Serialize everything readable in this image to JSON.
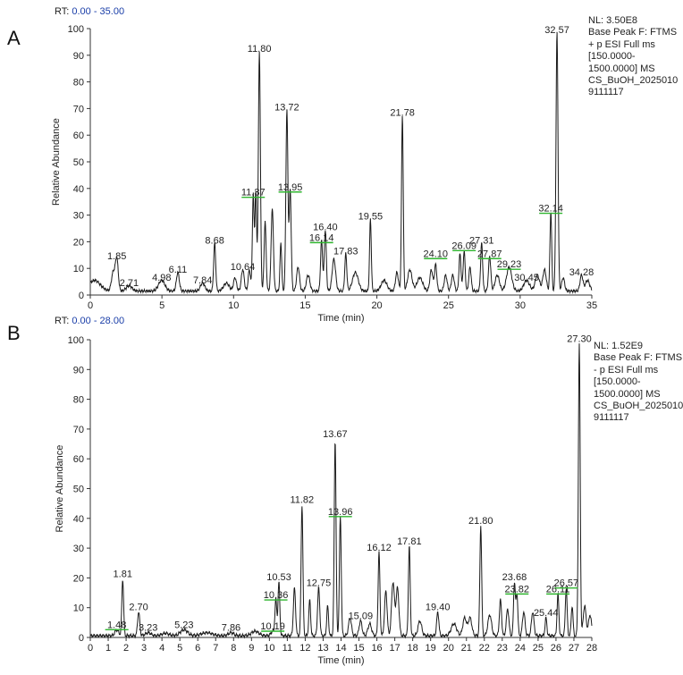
{
  "panels": {
    "A": {
      "label": "A",
      "rt_prefix": "RT:",
      "rt_range": "0.00 - 35.00",
      "meta": [
        "NL: 3.50E8",
        "Base Peak F: FTMS",
        "+ p ESI Full ms",
        "[150.0000-",
        "1500.0000] MS",
        "CS_BuOH_2025010",
        "9111117"
      ]
    },
    "B": {
      "label": "B",
      "rt_prefix": "RT:",
      "rt_range": "0.00 - 28.00",
      "meta": [
        "NL: 1.52E9",
        "Base Peak F: FTMS",
        "- p ESI Full ms",
        "[150.0000-",
        "1500.0000] MS",
        "CS_BuOH_2025010",
        "9111117"
      ]
    }
  },
  "chart_data": [
    {
      "type": "line",
      "title": "",
      "xlabel": "Time (min)",
      "ylabel": "Relative Abundance",
      "xlim": [
        0,
        35
      ],
      "ylim": [
        0,
        100
      ],
      "xticks": [
        0,
        5,
        10,
        15,
        20,
        25,
        30,
        35
      ],
      "yticks": [
        0,
        10,
        20,
        30,
        40,
        50,
        60,
        70,
        80,
        90,
        100
      ],
      "baseline": 1.5,
      "peaks": [
        [
          0.3,
          4,
          0.4
        ],
        [
          1.6,
          7,
          0.12
        ],
        [
          1.85,
          12,
          0.1
        ],
        [
          2.71,
          2,
          0.2
        ],
        [
          4.98,
          4,
          0.22
        ],
        [
          6.11,
          7,
          0.1
        ],
        [
          7.84,
          3,
          0.15
        ],
        [
          8.68,
          18,
          0.07
        ],
        [
          9.5,
          3,
          0.2
        ],
        [
          10.1,
          5,
          0.1
        ],
        [
          10.64,
          8,
          0.1
        ],
        [
          11.1,
          8,
          0.08
        ],
        [
          11.37,
          36,
          0.06
        ],
        [
          11.55,
          37,
          0.06
        ],
        [
          11.8,
          90,
          0.07
        ],
        [
          12.2,
          26,
          0.07
        ],
        [
          12.7,
          31,
          0.08
        ],
        [
          13.3,
          18,
          0.06
        ],
        [
          13.72,
          68,
          0.07
        ],
        [
          13.95,
          38,
          0.07
        ],
        [
          14.5,
          9,
          0.1
        ],
        [
          15.2,
          6,
          0.12
        ],
        [
          16.14,
          19,
          0.07
        ],
        [
          16.4,
          23,
          0.07
        ],
        [
          17.0,
          12,
          0.12
        ],
        [
          17.83,
          14,
          0.07
        ],
        [
          18.5,
          7,
          0.2
        ],
        [
          19.55,
          27,
          0.06
        ],
        [
          20.5,
          4,
          0.2
        ],
        [
          21.4,
          7,
          0.1
        ],
        [
          21.78,
          66,
          0.06
        ],
        [
          22.3,
          8,
          0.15
        ],
        [
          23.0,
          5,
          0.2
        ],
        [
          23.8,
          8,
          0.1
        ],
        [
          24.1,
          10,
          0.08
        ],
        [
          24.8,
          6,
          0.1
        ],
        [
          25.3,
          6,
          0.1
        ],
        [
          25.8,
          14,
          0.07
        ],
        [
          26.09,
          15,
          0.07
        ],
        [
          26.5,
          9,
          0.08
        ],
        [
          27.31,
          18,
          0.07
        ],
        [
          27.87,
          13,
          0.08
        ],
        [
          28.4,
          6,
          0.15
        ],
        [
          29.23,
          9,
          0.18
        ],
        [
          30.45,
          4,
          0.2
        ],
        [
          31.2,
          6,
          0.15
        ],
        [
          31.7,
          8,
          0.12
        ],
        [
          32.14,
          30,
          0.06
        ],
        [
          32.57,
          97,
          0.07
        ],
        [
          33.0,
          5,
          0.1
        ],
        [
          34.28,
          6,
          0.1
        ],
        [
          34.7,
          4,
          0.15
        ]
      ],
      "labels": [
        {
          "x": 1.85,
          "y": 12,
          "text": "1.85"
        },
        {
          "x": 2.71,
          "y": 2,
          "text": "2.71"
        },
        {
          "x": 4.98,
          "y": 4,
          "text": "4.98"
        },
        {
          "x": 6.11,
          "y": 7,
          "text": "6.11"
        },
        {
          "x": 7.84,
          "y": 3,
          "text": "7.84"
        },
        {
          "x": 8.68,
          "y": 18,
          "text": "8.68"
        },
        {
          "x": 10.64,
          "y": 8,
          "text": "10.64"
        },
        {
          "x": 11.37,
          "y": 36,
          "text": "11.37",
          "bar": true
        },
        {
          "x": 11.8,
          "y": 90,
          "text": "11.80"
        },
        {
          "x": 13.72,
          "y": 68,
          "text": "13.72"
        },
        {
          "x": 13.95,
          "y": 38,
          "text": "13.95",
          "bar": true
        },
        {
          "x": 16.14,
          "y": 19,
          "text": "16.14",
          "bar": true
        },
        {
          "x": 16.4,
          "y": 23,
          "text": "16.40"
        },
        {
          "x": 17.83,
          "y": 14,
          "text": "17.83"
        },
        {
          "x": 19.55,
          "y": 27,
          "text": "19.55"
        },
        {
          "x": 21.78,
          "y": 66,
          "text": "21.78"
        },
        {
          "x": 24.1,
          "y": 13,
          "text": "24.10",
          "bar": true
        },
        {
          "x": 26.09,
          "y": 16,
          "text": "26.09",
          "bar": true
        },
        {
          "x": 27.31,
          "y": 18,
          "text": "27.31"
        },
        {
          "x": 27.87,
          "y": 13,
          "text": "27.87",
          "bar": true
        },
        {
          "x": 29.23,
          "y": 9,
          "text": "29.23",
          "bar": true
        },
        {
          "x": 30.45,
          "y": 4,
          "text": "30.45"
        },
        {
          "x": 32.14,
          "y": 30,
          "text": "32.14",
          "bar": true
        },
        {
          "x": 32.57,
          "y": 97,
          "text": "32.57"
        },
        {
          "x": 34.28,
          "y": 6,
          "text": "34.28"
        }
      ]
    },
    {
      "type": "line",
      "title": "",
      "xlabel": "Time (min)",
      "ylabel": "Relative Abundance",
      "xlim": [
        0,
        28
      ],
      "ylim": [
        0,
        100
      ],
      "xticks": [
        0,
        1,
        2,
        3,
        4,
        5,
        6,
        7,
        8,
        9,
        10,
        11,
        12,
        13,
        14,
        15,
        16,
        17,
        18,
        19,
        20,
        21,
        22,
        23,
        24,
        25,
        26,
        27,
        28
      ],
      "yticks": [
        0,
        10,
        20,
        30,
        40,
        50,
        60,
        70,
        80,
        90,
        100
      ],
      "baseline": 0.6,
      "peaks": [
        [
          1.48,
          2,
          0.1
        ],
        [
          1.81,
          19,
          0.05
        ],
        [
          2.7,
          8,
          0.06
        ],
        [
          3.23,
          1,
          0.15
        ],
        [
          4.2,
          0.8,
          0.2
        ],
        [
          5.23,
          2,
          0.2
        ],
        [
          6.5,
          1,
          0.3
        ],
        [
          7.86,
          1,
          0.15
        ],
        [
          9.2,
          1.5,
          0.2
        ],
        [
          10.19,
          1.5,
          0.1
        ],
        [
          10.36,
          12,
          0.05
        ],
        [
          10.53,
          18,
          0.05
        ],
        [
          11.4,
          16,
          0.06
        ],
        [
          11.82,
          44,
          0.05
        ],
        [
          12.25,
          12,
          0.05
        ],
        [
          12.75,
          16,
          0.06
        ],
        [
          13.25,
          10,
          0.05
        ],
        [
          13.67,
          66,
          0.05
        ],
        [
          13.96,
          40,
          0.05
        ],
        [
          14.5,
          6,
          0.08
        ],
        [
          15.09,
          5,
          0.08
        ],
        [
          15.6,
          4,
          0.1
        ],
        [
          16.12,
          28,
          0.05
        ],
        [
          16.5,
          15,
          0.07
        ],
        [
          16.9,
          18,
          0.08
        ],
        [
          17.15,
          16,
          0.08
        ],
        [
          17.81,
          30,
          0.05
        ],
        [
          18.4,
          5,
          0.1
        ],
        [
          19.4,
          8,
          0.06
        ],
        [
          20.3,
          4,
          0.15
        ],
        [
          20.9,
          6,
          0.1
        ],
        [
          21.2,
          6,
          0.1
        ],
        [
          21.8,
          37,
          0.05
        ],
        [
          22.3,
          7,
          0.1
        ],
        [
          22.9,
          12,
          0.06
        ],
        [
          23.3,
          9,
          0.07
        ],
        [
          23.68,
          18,
          0.05
        ],
        [
          23.82,
          14,
          0.05
        ],
        [
          24.2,
          8,
          0.07
        ],
        [
          24.7,
          8,
          0.07
        ],
        [
          25.44,
          6,
          0.05
        ],
        [
          26.11,
          14,
          0.05
        ],
        [
          26.57,
          16,
          0.05
        ],
        [
          26.9,
          10,
          0.05
        ],
        [
          27.3,
          98,
          0.05
        ],
        [
          27.6,
          10,
          0.08
        ],
        [
          27.9,
          7,
          0.08
        ]
      ],
      "labels": [
        {
          "x": 1.48,
          "y": 2,
          "text": "1.48",
          "bar": true
        },
        {
          "x": 1.81,
          "y": 19,
          "text": "1.81"
        },
        {
          "x": 2.7,
          "y": 8,
          "text": "2.70"
        },
        {
          "x": 3.23,
          "y": 1,
          "text": "3.23"
        },
        {
          "x": 5.23,
          "y": 2,
          "text": "5.23"
        },
        {
          "x": 7.86,
          "y": 1,
          "text": "7.86"
        },
        {
          "x": 10.19,
          "y": 1.5,
          "text": "10.19",
          "bar": true
        },
        {
          "x": 10.36,
          "y": 12,
          "text": "10.36",
          "bar": true
        },
        {
          "x": 10.53,
          "y": 18,
          "text": "10.53"
        },
        {
          "x": 11.82,
          "y": 44,
          "text": "11.82"
        },
        {
          "x": 12.75,
          "y": 16,
          "text": "12.75"
        },
        {
          "x": 13.67,
          "y": 66,
          "text": "13.67"
        },
        {
          "x": 13.96,
          "y": 40,
          "text": "13.96",
          "bar": true
        },
        {
          "x": 15.09,
          "y": 5,
          "text": "15.09"
        },
        {
          "x": 16.12,
          "y": 28,
          "text": "16.12"
        },
        {
          "x": 17.81,
          "y": 30,
          "text": "17.81"
        },
        {
          "x": 19.4,
          "y": 8,
          "text": "19.40"
        },
        {
          "x": 21.8,
          "y": 37,
          "text": "21.80"
        },
        {
          "x": 23.68,
          "y": 18,
          "text": "23.68"
        },
        {
          "x": 23.82,
          "y": 14,
          "text": "23.82",
          "bar": true
        },
        {
          "x": 25.44,
          "y": 6,
          "text": "25.44"
        },
        {
          "x": 26.11,
          "y": 14,
          "text": "26.11",
          "bar": true
        },
        {
          "x": 26.57,
          "y": 16,
          "text": "26.57",
          "bar": true
        },
        {
          "x": 27.3,
          "y": 98,
          "text": "27.30"
        }
      ]
    }
  ]
}
